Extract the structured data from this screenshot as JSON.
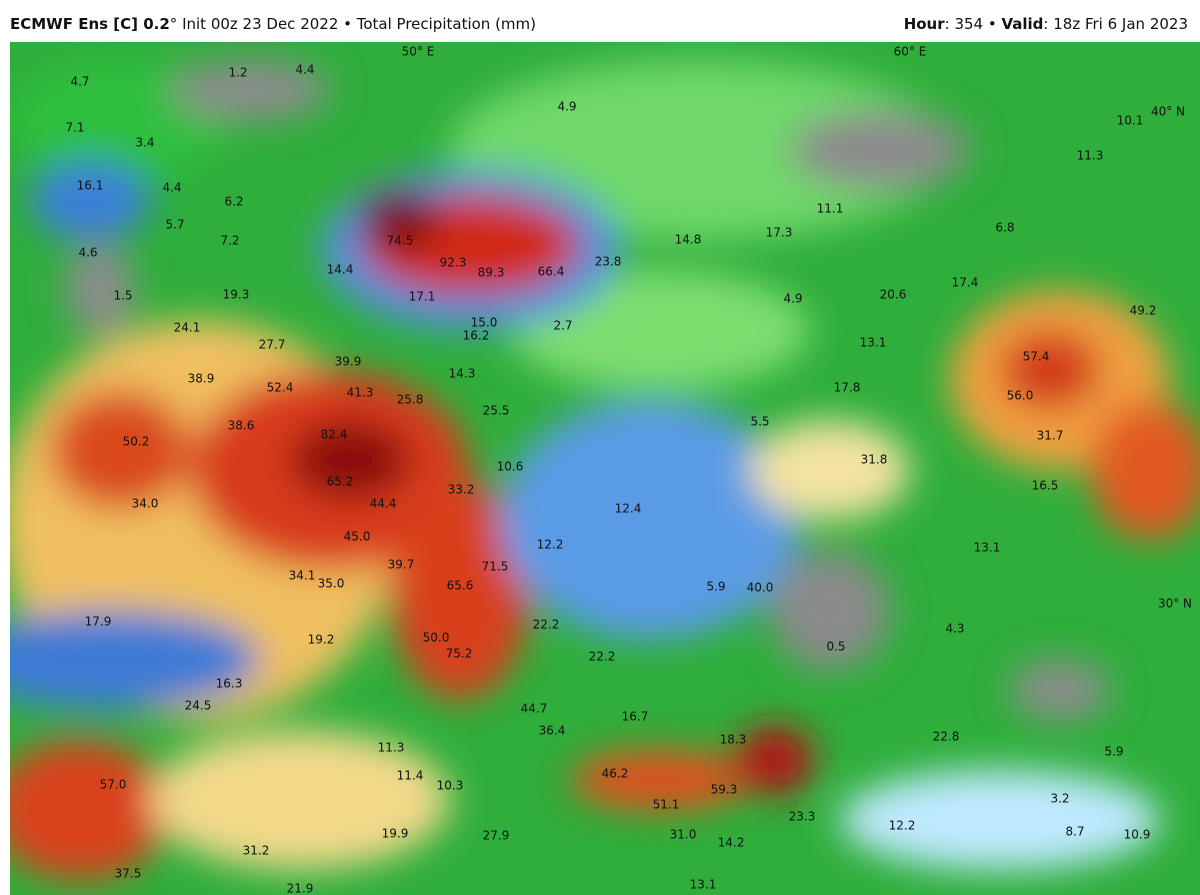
{
  "header": {
    "model": "ECMWF Ens [C] 0.2",
    "run": "° Init 00z 23 Dec 2022 • Total Precipitation (mm)",
    "hour_key": "Hour",
    "hour_value": ": 354 • ",
    "valid_key": "Valid",
    "valid_value": ": 18z Fri 6 Jan 2023"
  },
  "grid_labels": [
    "50° E",
    "60° E",
    "40° N",
    "30° N"
  ],
  "labels": [
    "4.7",
    "1.2",
    "4.4",
    "7.1",
    "3.4",
    "16.1",
    "4.4",
    "6.2",
    "5.7",
    "7.2",
    "4.6",
    "1.5",
    "19.3",
    "14.4",
    "74.5",
    "92.3",
    "89.3",
    "66.4",
    "23.8",
    "14.8",
    "17.3",
    "11.1",
    "4.9",
    "10.1",
    "11.3",
    "6.8",
    "17.4",
    "20.6",
    "4.9",
    "49.2",
    "57.4",
    "56.0",
    "31.7",
    "16.5",
    "13.1",
    "17.8",
    "5.5",
    "31.8",
    "17.1",
    "15.0",
    "16.2",
    "2.7",
    "24.1",
    "27.7",
    "39.9",
    "38.9",
    "52.4",
    "41.3",
    "25.8",
    "14.3",
    "25.5",
    "50.2",
    "38.6",
    "82.4",
    "65.2",
    "33.2",
    "44.4",
    "10.6",
    "34.0",
    "45.0",
    "12.4",
    "12.2",
    "13.1",
    "34.1",
    "35.0",
    "39.7",
    "71.5",
    "65.6",
    "5.9",
    "40.0",
    "17.9",
    "19.2",
    "50.0",
    "75.2",
    "22.2",
    "22.2",
    "0.5",
    "4.3",
    "16.3",
    "24.5",
    "44.7",
    "36.4",
    "16.7",
    "18.3",
    "22.8",
    "5.9",
    "11.3",
    "11.4",
    "10.3",
    "46.2",
    "59.3",
    "57.0",
    "51.1",
    "3.2",
    "23.3",
    "12.2",
    "8.7",
    "10.9",
    "19.9",
    "27.9",
    "31.0",
    "14.2",
    "31.2",
    "37.5",
    "13.1",
    "21.9"
  ]
}
